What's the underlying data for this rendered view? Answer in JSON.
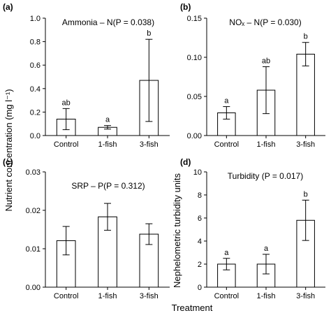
{
  "ylabel_left": "Nutrient concentration (mg l⁻¹)",
  "ylabel_right": "Nephelometric turbidity units",
  "xlabel": "Treatment",
  "chart_data": [
    {
      "type": "bar",
      "panel": "(a)",
      "title": "Ammonia – N(P = 0.038)",
      "categories": [
        "Control",
        "1-fish",
        "3-fish"
      ],
      "values": [
        0.14,
        0.07,
        0.47
      ],
      "errors": [
        0.09,
        0.015,
        0.35
      ],
      "letters": [
        "ab",
        "a",
        "b"
      ],
      "ylim": [
        0,
        1.0
      ],
      "yticks": [
        0,
        0.2,
        0.4,
        0.6,
        0.8,
        1.0
      ],
      "ytick_labels": [
        "0.0",
        "0.2",
        "0.4",
        "0.6",
        "0.8",
        "1.0"
      ]
    },
    {
      "type": "bar",
      "panel": "(b)",
      "title": "NOₓ – N(P = 0.030)",
      "categories": [
        "Control",
        "1-fish",
        "3-fish"
      ],
      "values": [
        0.029,
        0.058,
        0.104
      ],
      "errors": [
        0.008,
        0.03,
        0.015
      ],
      "letters": [
        "a",
        "ab",
        "b"
      ],
      "ylim": [
        0,
        0.15
      ],
      "yticks": [
        0,
        0.05,
        0.1,
        0.15
      ],
      "ytick_labels": [
        "0.00",
        "0.05",
        "0.10",
        "0.15"
      ]
    },
    {
      "type": "bar",
      "panel": "(c)",
      "title": "SRP – P(P = 0.312)",
      "categories": [
        "Control",
        "1-fish",
        "3-fish"
      ],
      "values": [
        0.0121,
        0.0183,
        0.0138
      ],
      "errors": [
        0.0037,
        0.0035,
        0.0027
      ],
      "letters": [
        "",
        "",
        ""
      ],
      "ylim": [
        0,
        0.03
      ],
      "yticks": [
        0,
        0.01,
        0.02,
        0.03
      ],
      "ytick_labels": [
        "0.00",
        "0.01",
        "0.02",
        "0.03"
      ]
    },
    {
      "type": "bar",
      "panel": "(d)",
      "title": "Turbidity (P = 0.017)",
      "categories": [
        "Control",
        "1-fish",
        "3-fish"
      ],
      "values": [
        2.0,
        2.0,
        5.8
      ],
      "errors": [
        0.5,
        0.85,
        1.75
      ],
      "letters": [
        "a",
        "a",
        "b"
      ],
      "ylim": [
        0,
        10
      ],
      "yticks": [
        0,
        2,
        4,
        6,
        8,
        10
      ],
      "ytick_labels": [
        "0",
        "2",
        "4",
        "6",
        "8",
        "10"
      ]
    }
  ]
}
